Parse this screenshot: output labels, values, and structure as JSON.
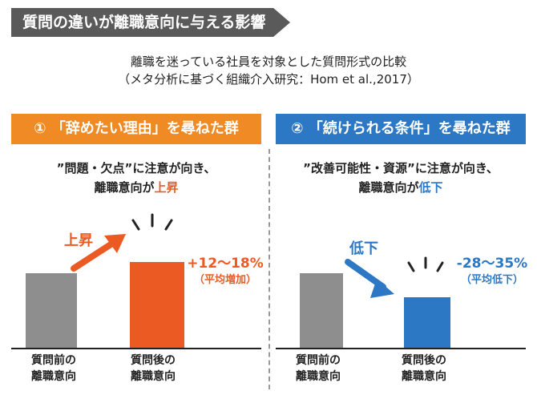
{
  "header": {
    "title": "質問の違いが離職意向に与える影響",
    "subtitle_line1": "離職を迷っている社員を対象とした質問形式の比較",
    "subtitle_line2": "（メタ分析に基づく組織介入研究：Hom et al.,2017）"
  },
  "colors": {
    "orange": "#ec5a24",
    "panel_orange": "#f08a24",
    "blue": "#2d78c4",
    "gray": "#8e8e8e",
    "title_bg": "#5a5a5a"
  },
  "panels": [
    {
      "header": "① 「辞めたい理由」を尋ねた群",
      "desc_line1": "”問題・欠点”に注意が向き、",
      "desc_line2_prefix": "離職意向が",
      "desc_line2_highlight": "上昇",
      "change_label": "上昇",
      "change_pct": "+12〜18%",
      "change_sub": "（平均増加）",
      "bar_labels": [
        "質問前の\n離職意向",
        "質問後の\n離職意向"
      ]
    },
    {
      "header": "② 「続けられる条件」を尋ねた群",
      "desc_line1": "”改善可能性・資源”に注意が向き、",
      "desc_line2_prefix": "離職意向が",
      "desc_line2_highlight": "低下",
      "change_label": "低下",
      "change_pct": "-28〜35%",
      "change_sub": "（平均低下）",
      "bar_labels": [
        "質問前の\n離職意向",
        "質問後の\n離職意向"
      ]
    }
  ],
  "chart_data": [
    {
      "type": "bar",
      "categories": [
        "質問前の離職意向",
        "質問後の離職意向"
      ],
      "values": [
        100,
        115
      ],
      "colors": [
        "#8e8e8e",
        "#ec5a24"
      ],
      "annotation": "+12〜18%（平均増加）"
    },
    {
      "type": "bar",
      "categories": [
        "質問前の離職意向",
        "質問後の離職意向"
      ],
      "values": [
        100,
        68
      ],
      "colors": [
        "#8e8e8e",
        "#2d78c4"
      ],
      "annotation": "-28〜35%（平均低下）"
    }
  ]
}
